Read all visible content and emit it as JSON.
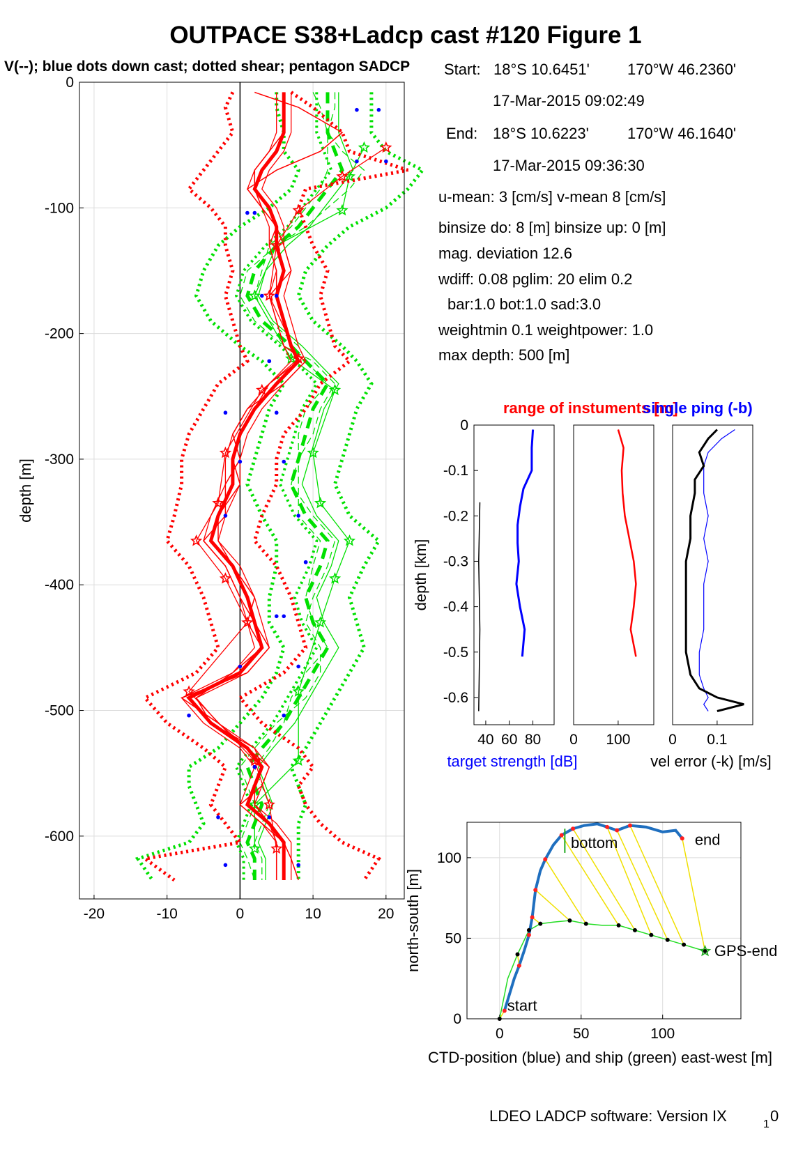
{
  "title": "OUTPACE S38+Ladcp cast #120  Figure 1",
  "subtitle": "V(--); blue dots down cast; dotted shear; pentagon SADCP",
  "info": {
    "start_label": "Start:",
    "start_lat": "18°S 10.6451'",
    "start_lon": "170°W 46.2360'",
    "start_time": "17-Mar-2015 09:02:49",
    "end_label": "End:",
    "end_lat": "18°S 10.6223'",
    "end_lon": "170°W 46.1640'",
    "end_time": "17-Mar-2015 09:36:30",
    "umean": "u-mean:   3 [cm/s]    v-mean   8 [cm/s]",
    "binsize": "binsize do: 8 [m]  binsize up:  0 [m]",
    "magdev": "mag. deviation 12.6",
    "wdiff": "wdiff: 0.08  pglim: 20  elim 0.2",
    "bar": "bar:1.0 bot:1.0 sad:3.0",
    "weight": "weightmin 0.1  weightpower: 1.0",
    "maxdepth": "max depth: 500 [m]"
  },
  "footer": {
    "software": "LDEO LADCP software: Version IX",
    "sub": "1",
    "tail": "0"
  },
  "chart_data": [
    {
      "id": "velocity-profile",
      "type": "line",
      "ylabel": "depth [m]",
      "xlabel": "",
      "xlim": [
        -22,
        22.5
      ],
      "ylim": [
        -650,
        0
      ],
      "xticks": [
        "-20",
        "-10",
        "0",
        "10",
        "20"
      ],
      "xtick_values": [
        -20,
        -10,
        0,
        10,
        20
      ],
      "yticks": [
        "0",
        "-100",
        "-200",
        "-300",
        "-400",
        "-500",
        "-600"
      ],
      "ytick_values": [
        0,
        -100,
        -200,
        -300,
        -400,
        -500,
        -600
      ],
      "grid": true,
      "colors": {
        "u": "#ff0000",
        "v": "#00e000",
        "dots": "#0000ff"
      },
      "depth": [
        -8,
        -20,
        -40,
        -55,
        -70,
        -85,
        -100,
        -115,
        -130,
        -150,
        -170,
        -190,
        -210,
        -222,
        -240,
        -260,
        -280,
        -300,
        -320,
        -345,
        -365,
        -385,
        -410,
        -430,
        -450,
        -470,
        -490,
        -510,
        -530,
        -545,
        -560,
        -575,
        -590,
        -605,
        -618,
        -635
      ],
      "u_mean": [
        6,
        6,
        6,
        5,
        3,
        2,
        4,
        5,
        5,
        6,
        5,
        6,
        7,
        8,
        5,
        2,
        0,
        -1,
        -1,
        -3,
        -4,
        -1,
        1,
        2,
        3,
        0,
        -7,
        -4,
        1,
        3,
        2,
        1,
        4,
        6,
        6,
        6
      ],
      "u_down": [
        2,
        8,
        14,
        11,
        5,
        1,
        3,
        5,
        6,
        7,
        4,
        5,
        6,
        9,
        6,
        1,
        -1,
        0,
        -2,
        -2,
        -5,
        -2,
        0,
        2,
        4,
        1,
        -8,
        -3,
        1,
        4,
        3,
        0,
        3,
        6,
        7,
        8
      ],
      "u_up": [
        6,
        6,
        6,
        4,
        2,
        2,
        3,
        5,
        4,
        5,
        5,
        6,
        7,
        8,
        4,
        2,
        0,
        -1,
        0,
        -3,
        -3,
        -1,
        2,
        1,
        3,
        -1,
        -6,
        -4,
        2,
        3,
        2,
        2,
        4,
        5,
        5,
        5
      ],
      "u_shear_lo": [
        -1,
        -2,
        -1,
        -3,
        -5,
        -7,
        -4,
        -2,
        -2,
        -1,
        -2,
        -1,
        0,
        1,
        -3,
        -5,
        -7,
        -8,
        -8,
        -9,
        -10,
        -7,
        -5,
        -4,
        -3,
        -6,
        -13,
        -10,
        -5,
        -2,
        -3,
        -4,
        -2,
        0,
        -13,
        -9
      ],
      "u_shear_hi": [
        7,
        10,
        14,
        15,
        23,
        9,
        8,
        9,
        10,
        12,
        11,
        12,
        13,
        15,
        11,
        9,
        6,
        5,
        5,
        3,
        2,
        5,
        7,
        8,
        9,
        6,
        0,
        3,
        8,
        10,
        8,
        9,
        11,
        14,
        19,
        17
      ],
      "v_mean": [
        12,
        12,
        12,
        13,
        14,
        12,
        10,
        8,
        5,
        2,
        1,
        3,
        7,
        9,
        12,
        10,
        9,
        8,
        7,
        9,
        12,
        11,
        9,
        10,
        12,
        10,
        8,
        6,
        3,
        1,
        2,
        3,
        2,
        1,
        2,
        2
      ],
      "v_down": [
        10,
        11,
        12,
        14,
        17,
        15,
        12,
        9,
        5,
        1,
        0,
        2,
        6,
        10,
        13,
        11,
        10,
        8,
        7,
        10,
        13,
        12,
        10,
        9,
        11,
        11,
        9,
        5,
        2,
        0,
        1,
        2,
        1,
        0,
        1,
        2
      ],
      "v_up": [
        13,
        13,
        12,
        12,
        12,
        11,
        9,
        7,
        4,
        3,
        2,
        4,
        8,
        9,
        12,
        9,
        8,
        8,
        8,
        8,
        11,
        10,
        9,
        10,
        12,
        9,
        7,
        6,
        4,
        2,
        3,
        4,
        3,
        2,
        3,
        3
      ],
      "v_shear_lo": [
        5,
        5,
        6,
        6,
        8,
        7,
        4,
        0,
        -3,
        -5,
        -6,
        -4,
        0,
        3,
        6,
        4,
        3,
        2,
        1,
        3,
        5,
        5,
        4,
        4,
        6,
        5,
        3,
        0,
        -3,
        -7,
        -7,
        -6,
        -5,
        -7,
        -14,
        -12
      ],
      "v_shear_hi": [
        18,
        18,
        18,
        20,
        25,
        23,
        20,
        15,
        12,
        9,
        8,
        10,
        14,
        16,
        18,
        16,
        15,
        14,
        13,
        15,
        19,
        17,
        15,
        16,
        17,
        15,
        13,
        11,
        9,
        7,
        8,
        9,
        8,
        8,
        8,
        8
      ],
      "sadcp_depth": [
        -52,
        -75,
        -102,
        -130,
        -170,
        -220,
        -245,
        -295,
        -335,
        -365,
        -395,
        -430,
        -485,
        -540,
        -575,
        -610
      ],
      "u_sadcp": [
        20,
        14,
        8,
        5,
        4,
        8,
        3,
        -2,
        -3,
        -6,
        -2,
        1,
        -7,
        2,
        4,
        5
      ],
      "v_sadcp": [
        17,
        15,
        14,
        5,
        2,
        7,
        13,
        10,
        11,
        15,
        13,
        11,
        8,
        8,
        2,
        2
      ],
      "blue_dots_depth": [
        -22,
        -63,
        -104,
        -170,
        -222,
        -263,
        -302,
        -345,
        -382,
        -425,
        -465,
        -504,
        -545,
        -585,
        -623
      ],
      "blue_dots_u": [
        16,
        20,
        1,
        5,
        4,
        -2,
        0,
        -2,
        9,
        5,
        0,
        -7,
        2,
        4,
        -2
      ],
      "blue_dots_v": [
        19,
        16,
        2,
        3,
        4,
        5,
        6,
        8,
        9,
        6,
        8,
        6,
        2,
        -3,
        8
      ]
    },
    {
      "id": "target-strength",
      "type": "line",
      "xlabel": "target strength [dB]",
      "ylabel": "depth [km]",
      "xlim": [
        30,
        98
      ],
      "ylim": [
        -0.66,
        0
      ],
      "xticks": [
        "40",
        "60",
        "80"
      ],
      "xtick_values": [
        40,
        60,
        80
      ],
      "yticks": [
        "0",
        "-0.1",
        "-0.2",
        "-0.3",
        "-0.4",
        "-0.5",
        "-0.6"
      ],
      "ytick_values": [
        0,
        -0.1,
        -0.2,
        -0.3,
        -0.4,
        -0.5,
        -0.6
      ],
      "depth": [
        -0.01,
        -0.05,
        -0.1,
        -0.14,
        -0.18,
        -0.22,
        -0.26,
        -0.3,
        -0.35,
        -0.4,
        -0.45,
        -0.51
      ],
      "target_strength": [
        80,
        79,
        79,
        72,
        69,
        67,
        67,
        68,
        66,
        69,
        73,
        71
      ],
      "range_depth": [
        -0.17,
        -0.3,
        -0.45,
        -0.63
      ],
      "range_black": [
        35,
        34,
        35,
        34
      ]
    },
    {
      "id": "range-of-instruments",
      "type": "line",
      "title": "range of instuments [m]",
      "xlim": [
        0,
        180
      ],
      "ylim": [
        -0.66,
        0
      ],
      "xticks": [
        "0",
        "100"
      ],
      "xtick_values": [
        0,
        100
      ],
      "depth": [
        -0.01,
        -0.05,
        -0.1,
        -0.15,
        -0.2,
        -0.25,
        -0.3,
        -0.35,
        -0.4,
        -0.45,
        -0.5,
        -0.51
      ],
      "range": [
        100,
        112,
        108,
        110,
        115,
        125,
        135,
        140,
        135,
        128,
        138,
        140
      ]
    },
    {
      "id": "vel-error",
      "type": "line",
      "title": "single ping (-b)",
      "xlabel": "vel error (-k) [m/s]",
      "xlim": [
        0,
        0.18
      ],
      "ylim": [
        -0.66,
        0
      ],
      "xticks": [
        "0",
        "0.1"
      ],
      "xtick_values": [
        0,
        0.1
      ],
      "depth": [
        -0.01,
        -0.03,
        -0.06,
        -0.09,
        -0.12,
        -0.15,
        -0.2,
        -0.25,
        -0.3,
        -0.35,
        -0.4,
        -0.45,
        -0.5,
        -0.55,
        -0.58,
        -0.6,
        -0.615,
        -0.63
      ],
      "err_k": [
        0.1,
        0.08,
        0.06,
        0.07,
        0.05,
        0.05,
        0.04,
        0.04,
        0.03,
        0.03,
        0.03,
        0.03,
        0.03,
        0.04,
        0.06,
        0.1,
        0.16,
        0.1
      ],
      "err_b": [
        0.14,
        0.11,
        0.08,
        0.07,
        0.07,
        0.07,
        0.08,
        0.07,
        0.08,
        0.07,
        0.07,
        0.07,
        0.06,
        0.06,
        0.07,
        0.08,
        0.07,
        0.08
      ]
    },
    {
      "id": "position",
      "type": "line",
      "xlabel": "CTD-position (blue) and ship (green) east-west [m]",
      "ylabel": "north-south [m]",
      "xlim": [
        -20,
        148
      ],
      "ylim": [
        0,
        122
      ],
      "xticks": [
        "0",
        "50",
        "100"
      ],
      "xtick_values": [
        0,
        50,
        100
      ],
      "yticks": [
        "0",
        "50",
        "100"
      ],
      "ytick_values": [
        0,
        50,
        100
      ],
      "ctd_x": [
        3,
        6,
        9,
        12,
        15,
        18,
        20,
        22,
        25,
        28,
        33,
        38,
        45,
        52,
        60,
        66,
        72,
        80,
        90,
        100,
        108,
        112
      ],
      "ctd_y": [
        5,
        15,
        25,
        33,
        42,
        52,
        63,
        80,
        92,
        99,
        108,
        114,
        118,
        120,
        121,
        119,
        117,
        120,
        119,
        116,
        117,
        112
      ],
      "ship_x": [
        0,
        5,
        11,
        18,
        25,
        33,
        43,
        53,
        63,
        73,
        83,
        93,
        103,
        113,
        126
      ],
      "ship_y": [
        0,
        25,
        40,
        55,
        59,
        60,
        61,
        59,
        58,
        58,
        55,
        52,
        49,
        46,
        42
      ],
      "pairs": [
        [
          0,
          0
        ],
        [
          3,
          2
        ],
        [
          5,
          3
        ],
        [
          6,
          4
        ],
        [
          7,
          6
        ],
        [
          9,
          7
        ],
        [
          11,
          9
        ],
        [
          12,
          10
        ],
        [
          15,
          11
        ],
        [
          16,
          12
        ],
        [
          17,
          13
        ],
        [
          21,
          14
        ]
      ],
      "labels": {
        "start": "start",
        "bottom": "bottom",
        "end": "end",
        "gps_end": "GPS-end"
      }
    }
  ]
}
